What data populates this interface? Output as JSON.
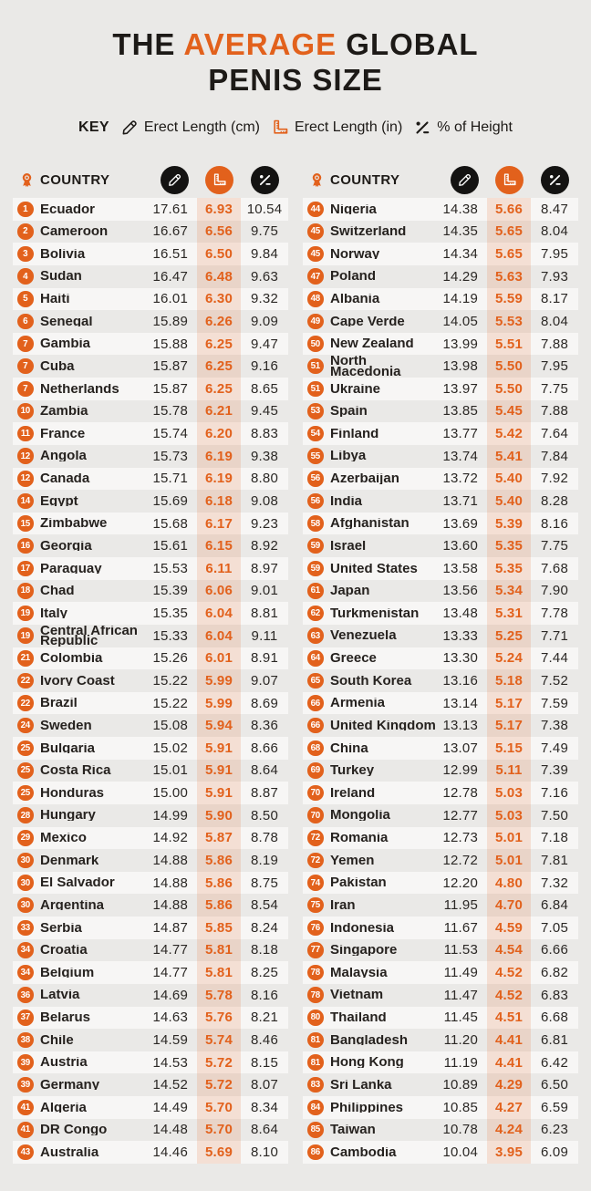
{
  "colors": {
    "background": "#EAE9E7",
    "accent_orange": "#E2611C",
    "ink": "#1D1A17",
    "row_stripe": "#F7F6F5"
  },
  "title": {
    "part1": "THE ",
    "highlight": "AVERAGE",
    "part2": " GLOBAL",
    "line2": "PENIS SIZE"
  },
  "key": {
    "label": "KEY",
    "items": [
      {
        "icon": "pencil-icon",
        "label": "Erect Length (cm)"
      },
      {
        "icon": "ruler-icon",
        "label": "Erect Length (in)"
      },
      {
        "icon": "percent-icon",
        "label": "% of Height"
      }
    ]
  },
  "header": {
    "country_label": "COUNTRY",
    "rank_icon": "medal-icon",
    "cm_icon": "pencil-icon",
    "in_icon": "ruler-icon",
    "pct_icon": "percent-icon"
  },
  "chart_data": {
    "type": "table",
    "title": "THE AVERAGE GLOBAL PENIS SIZE",
    "columns": [
      "rank",
      "country",
      "erect_length_cm",
      "erect_length_in",
      "pct_of_height"
    ],
    "left_rows": [
      {
        "rank": "1",
        "country": "Ecuador",
        "cm": "17.61",
        "inch": "6.93",
        "pct": "10.54"
      },
      {
        "rank": "2",
        "country": "Cameroon",
        "cm": "16.67",
        "inch": "6.56",
        "pct": "9.75"
      },
      {
        "rank": "3",
        "country": "Bolivia",
        "cm": "16.51",
        "inch": "6.50",
        "pct": "9.84"
      },
      {
        "rank": "4",
        "country": "Sudan",
        "cm": "16.47",
        "inch": "6.48",
        "pct": "9.63"
      },
      {
        "rank": "5",
        "country": "Haiti",
        "cm": "16.01",
        "inch": "6.30",
        "pct": "9.32"
      },
      {
        "rank": "6",
        "country": "Senegal",
        "cm": "15.89",
        "inch": "6.26",
        "pct": "9.09"
      },
      {
        "rank": "7",
        "country": "Gambia",
        "cm": "15.88",
        "inch": "6.25",
        "pct": "9.47"
      },
      {
        "rank": "7",
        "country": "Cuba",
        "cm": "15.87",
        "inch": "6.25",
        "pct": "9.16"
      },
      {
        "rank": "7",
        "country": "Netherlands",
        "cm": "15.87",
        "inch": "6.25",
        "pct": "8.65"
      },
      {
        "rank": "10",
        "country": "Zambia",
        "cm": "15.78",
        "inch": "6.21",
        "pct": "9.45"
      },
      {
        "rank": "11",
        "country": "France",
        "cm": "15.74",
        "inch": "6.20",
        "pct": "8.83"
      },
      {
        "rank": "12",
        "country": "Angola",
        "cm": "15.73",
        "inch": "6.19",
        "pct": "9.38"
      },
      {
        "rank": "12",
        "country": "Canada",
        "cm": "15.71",
        "inch": "6.19",
        "pct": "8.80"
      },
      {
        "rank": "14",
        "country": "Egypt",
        "cm": "15.69",
        "inch": "6.18",
        "pct": "9.08"
      },
      {
        "rank": "15",
        "country": "Zimbabwe",
        "cm": "15.68",
        "inch": "6.17",
        "pct": "9.23"
      },
      {
        "rank": "16",
        "country": "Georgia",
        "cm": "15.61",
        "inch": "6.15",
        "pct": "8.92"
      },
      {
        "rank": "17",
        "country": "Paraguay",
        "cm": "15.53",
        "inch": "6.11",
        "pct": "8.97"
      },
      {
        "rank": "18",
        "country": "Chad",
        "cm": "15.39",
        "inch": "6.06",
        "pct": "9.01"
      },
      {
        "rank": "19",
        "country": "Italy",
        "cm": "15.35",
        "inch": "6.04",
        "pct": "8.81"
      },
      {
        "rank": "19",
        "country": "Central African\nRepublic",
        "cm": "15.33",
        "inch": "6.04",
        "pct": "9.11"
      },
      {
        "rank": "21",
        "country": "Colombia",
        "cm": "15.26",
        "inch": "6.01",
        "pct": "8.91"
      },
      {
        "rank": "22",
        "country": "Ivory Coast",
        "cm": "15.22",
        "inch": "5.99",
        "pct": "9.07"
      },
      {
        "rank": "22",
        "country": "Brazil",
        "cm": "15.22",
        "inch": "5.99",
        "pct": "8.69"
      },
      {
        "rank": "24",
        "country": "Sweden",
        "cm": "15.08",
        "inch": "5.94",
        "pct": "8.36"
      },
      {
        "rank": "25",
        "country": "Bulgaria",
        "cm": "15.02",
        "inch": "5.91",
        "pct": "8.66"
      },
      {
        "rank": "25",
        "country": "Costa Rica",
        "cm": "15.01",
        "inch": "5.91",
        "pct": "8.64"
      },
      {
        "rank": "25",
        "country": "Honduras",
        "cm": "15.00",
        "inch": "5.91",
        "pct": "8.87"
      },
      {
        "rank": "28",
        "country": "Hungary",
        "cm": "14.99",
        "inch": "5.90",
        "pct": "8.50"
      },
      {
        "rank": "29",
        "country": "Mexico",
        "cm": "14.92",
        "inch": "5.87",
        "pct": "8.78"
      },
      {
        "rank": "30",
        "country": "Denmark",
        "cm": "14.88",
        "inch": "5.86",
        "pct": "8.19"
      },
      {
        "rank": "30",
        "country": "El Salvador",
        "cm": "14.88",
        "inch": "5.86",
        "pct": "8.75"
      },
      {
        "rank": "30",
        "country": "Argentina",
        "cm": "14.88",
        "inch": "5.86",
        "pct": "8.54"
      },
      {
        "rank": "33",
        "country": "Serbia",
        "cm": "14.87",
        "inch": "5.85",
        "pct": "8.24"
      },
      {
        "rank": "34",
        "country": "Croatia",
        "cm": "14.77",
        "inch": "5.81",
        "pct": "8.18"
      },
      {
        "rank": "34",
        "country": "Belgium",
        "cm": "14.77",
        "inch": "5.81",
        "pct": "8.25"
      },
      {
        "rank": "36",
        "country": "Latvia",
        "cm": "14.69",
        "inch": "5.78",
        "pct": "8.16"
      },
      {
        "rank": "37",
        "country": "Belarus",
        "cm": "14.63",
        "inch": "5.76",
        "pct": "8.21"
      },
      {
        "rank": "38",
        "country": "Chile",
        "cm": "14.59",
        "inch": "5.74",
        "pct": "8.46"
      },
      {
        "rank": "39",
        "country": "Austria",
        "cm": "14.53",
        "inch": "5.72",
        "pct": "8.15"
      },
      {
        "rank": "39",
        "country": "Germany",
        "cm": "14.52",
        "inch": "5.72",
        "pct": "8.07"
      },
      {
        "rank": "41",
        "country": "Algeria",
        "cm": "14.49",
        "inch": "5.70",
        "pct": "8.34"
      },
      {
        "rank": "41",
        "country": "DR Congo",
        "cm": "14.48",
        "inch": "5.70",
        "pct": "8.64"
      },
      {
        "rank": "43",
        "country": "Australia",
        "cm": "14.46",
        "inch": "5.69",
        "pct": "8.10"
      }
    ],
    "right_rows": [
      {
        "rank": "44",
        "country": "Nigeria",
        "cm": "14.38",
        "inch": "5.66",
        "pct": "8.47"
      },
      {
        "rank": "45",
        "country": "Switzerland",
        "cm": "14.35",
        "inch": "5.65",
        "pct": "8.04"
      },
      {
        "rank": "45",
        "country": "Norway",
        "cm": "14.34",
        "inch": "5.65",
        "pct": "7.95"
      },
      {
        "rank": "47",
        "country": "Poland",
        "cm": "14.29",
        "inch": "5.63",
        "pct": "7.93"
      },
      {
        "rank": "48",
        "country": "Albania",
        "cm": "14.19",
        "inch": "5.59",
        "pct": "8.17"
      },
      {
        "rank": "49",
        "country": "Cape Verde",
        "cm": "14.05",
        "inch": "5.53",
        "pct": "8.04"
      },
      {
        "rank": "50",
        "country": "New Zealand",
        "cm": "13.99",
        "inch": "5.51",
        "pct": "7.88"
      },
      {
        "rank": "51",
        "country": "North\nMacedonia",
        "cm": "13.98",
        "inch": "5.50",
        "pct": "7.95"
      },
      {
        "rank": "51",
        "country": "Ukraine",
        "cm": "13.97",
        "inch": "5.50",
        "pct": "7.75"
      },
      {
        "rank": "53",
        "country": "Spain",
        "cm": "13.85",
        "inch": "5.45",
        "pct": "7.88"
      },
      {
        "rank": "54",
        "country": "Finland",
        "cm": "13.77",
        "inch": "5.42",
        "pct": "7.64"
      },
      {
        "rank": "55",
        "country": "Libya",
        "cm": "13.74",
        "inch": "5.41",
        "pct": "7.84"
      },
      {
        "rank": "56",
        "country": "Azerbaijan",
        "cm": "13.72",
        "inch": "5.40",
        "pct": "7.92"
      },
      {
        "rank": "56",
        "country": "India",
        "cm": "13.71",
        "inch": "5.40",
        "pct": "8.28"
      },
      {
        "rank": "58",
        "country": "Afghanistan",
        "cm": "13.69",
        "inch": "5.39",
        "pct": "8.16"
      },
      {
        "rank": "59",
        "country": "Israel",
        "cm": "13.60",
        "inch": "5.35",
        "pct": "7.75"
      },
      {
        "rank": "59",
        "country": "United States",
        "cm": "13.58",
        "inch": "5.35",
        "pct": "7.68"
      },
      {
        "rank": "61",
        "country": "Japan",
        "cm": "13.56",
        "inch": "5.34",
        "pct": "7.90"
      },
      {
        "rank": "62",
        "country": "Turkmenistan",
        "cm": "13.48",
        "inch": "5.31",
        "pct": "7.78"
      },
      {
        "rank": "63",
        "country": "Venezuela",
        "cm": "13.33",
        "inch": "5.25",
        "pct": "7.71"
      },
      {
        "rank": "64",
        "country": "Greece",
        "cm": "13.30",
        "inch": "5.24",
        "pct": "7.44"
      },
      {
        "rank": "65",
        "country": "South Korea",
        "cm": "13.16",
        "inch": "5.18",
        "pct": "7.52"
      },
      {
        "rank": "66",
        "country": "Armenia",
        "cm": "13.14",
        "inch": "5.17",
        "pct": "7.59"
      },
      {
        "rank": "66",
        "country": "United Kingdom",
        "cm": "13.13",
        "inch": "5.17",
        "pct": "7.38"
      },
      {
        "rank": "68",
        "country": "China",
        "cm": "13.07",
        "inch": "5.15",
        "pct": "7.49"
      },
      {
        "rank": "69",
        "country": "Turkey",
        "cm": "12.99",
        "inch": "5.11",
        "pct": "7.39"
      },
      {
        "rank": "70",
        "country": "Ireland",
        "cm": "12.78",
        "inch": "5.03",
        "pct": "7.16"
      },
      {
        "rank": "70",
        "country": "Mongolia",
        "cm": "12.77",
        "inch": "5.03",
        "pct": "7.50"
      },
      {
        "rank": "72",
        "country": "Romania",
        "cm": "12.73",
        "inch": "5.01",
        "pct": "7.18"
      },
      {
        "rank": "72",
        "country": "Yemen",
        "cm": "12.72",
        "inch": "5.01",
        "pct": "7.81"
      },
      {
        "rank": "74",
        "country": "Pakistan",
        "cm": "12.20",
        "inch": "4.80",
        "pct": "7.32"
      },
      {
        "rank": "75",
        "country": "Iran",
        "cm": "11.95",
        "inch": "4.70",
        "pct": "6.84"
      },
      {
        "rank": "76",
        "country": "Indonesia",
        "cm": "11.67",
        "inch": "4.59",
        "pct": "7.05"
      },
      {
        "rank": "77",
        "country": "Singapore",
        "cm": "11.53",
        "inch": "4.54",
        "pct": "6.66"
      },
      {
        "rank": "78",
        "country": "Malaysia",
        "cm": "11.49",
        "inch": "4.52",
        "pct": "6.82"
      },
      {
        "rank": "78",
        "country": "Vietnam",
        "cm": "11.47",
        "inch": "4.52",
        "pct": "6.83"
      },
      {
        "rank": "80",
        "country": "Thailand",
        "cm": "11.45",
        "inch": "4.51",
        "pct": "6.68"
      },
      {
        "rank": "81",
        "country": "Bangladesh",
        "cm": "11.20",
        "inch": "4.41",
        "pct": "6.81"
      },
      {
        "rank": "81",
        "country": "Hong Kong",
        "cm": "11.19",
        "inch": "4.41",
        "pct": "6.42"
      },
      {
        "rank": "83",
        "country": "Sri Lanka",
        "cm": "10.89",
        "inch": "4.29",
        "pct": "6.50"
      },
      {
        "rank": "84",
        "country": "Philippines",
        "cm": "10.85",
        "inch": "4.27",
        "pct": "6.59"
      },
      {
        "rank": "85",
        "country": "Taiwan",
        "cm": "10.78",
        "inch": "4.24",
        "pct": "6.23"
      },
      {
        "rank": "86",
        "country": "Cambodia",
        "cm": "10.04",
        "inch": "3.95",
        "pct": "6.09"
      }
    ]
  }
}
